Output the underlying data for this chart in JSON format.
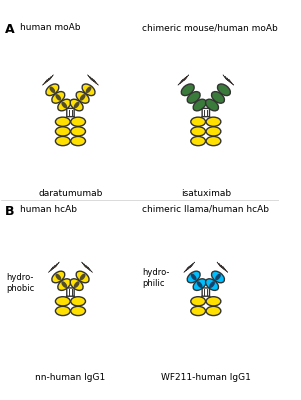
{
  "bg_color": "#ffffff",
  "yellow": "#FFE000",
  "orange": "#FF8000",
  "red": "#CC0000",
  "green": "#3A7A3A",
  "blue": "#00BFFF",
  "navy": "#1a1a3a",
  "outline": "#333333",
  "panel_A_label": "A",
  "panel_B_label": "B",
  "title_A_left": "human moAb",
  "title_A_right": "chimeric mouse/human moAb",
  "name_A_left": "daratumumab",
  "name_A_right": "isatuximab",
  "title_B_left": "human hcAb",
  "title_B_right": "chimeric llama/human hcAb",
  "name_B_left": "nn-human IgG1",
  "name_B_right": "WF211-human IgG1",
  "label_B_left": "hydro-\nphobic",
  "label_B_right": "hydro-\nphilic"
}
